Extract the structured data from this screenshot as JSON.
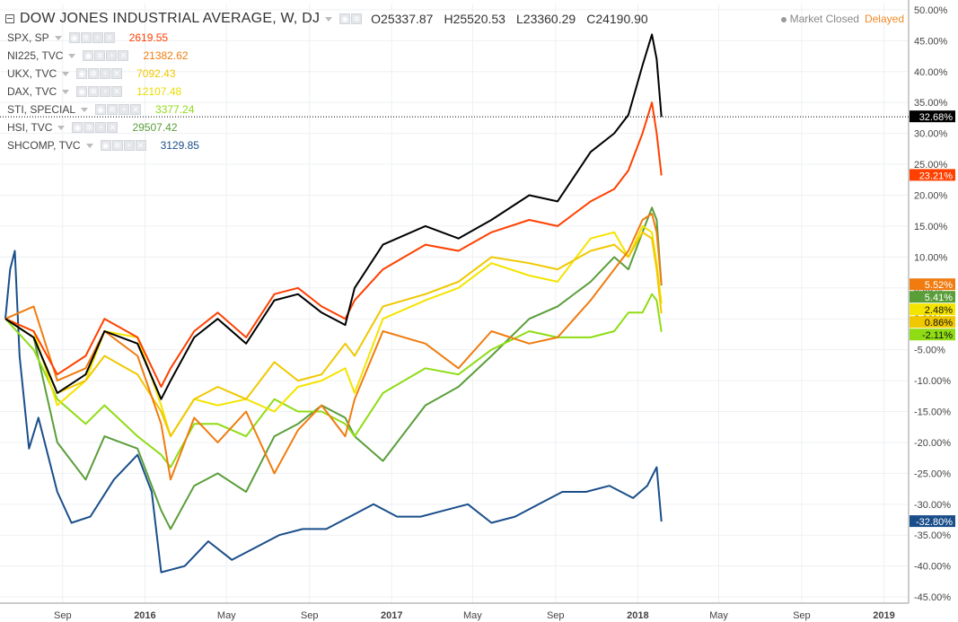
{
  "main": {
    "title": "DOW JONES INDUSTRIAL AVERAGE, W, DJ",
    "ohlc": {
      "o_label": "O",
      "o": "25337.87",
      "h_label": "H",
      "h": "25520.53",
      "l_label": "L",
      "l": "23360.29",
      "c_label": "C",
      "c": "24190.90"
    },
    "status": "Market Closed",
    "delayed": "Delayed"
  },
  "colors": {
    "DJI": "#000000",
    "SPX": "#ff4000",
    "NI225": "#f07c10",
    "UKX": "#f0c800",
    "DAX": "#f4e400",
    "STI": "#8fdc14",
    "HSI": "#5a9e3a",
    "SHCOMP": "#1a4e8a"
  },
  "legend": [
    {
      "name": "SPX, SP",
      "value": "2619.55",
      "color": "#ff4000"
    },
    {
      "name": "NI225, TVC",
      "value": "21382.62",
      "color": "#f07c10"
    },
    {
      "name": "UKX, TVC",
      "value": "7092.43",
      "color": "#f0c800"
    },
    {
      "name": "DAX, TVC",
      "value": "12107.48",
      "color": "#e8dc00"
    },
    {
      "name": "STI, SPECIAL",
      "value": "3377.24",
      "color": "#8fdc14"
    },
    {
      "name": "HSI, TVC",
      "value": "29507.42",
      "color": "#5a9e3a"
    },
    {
      "name": "SHCOMP, TVC",
      "value": "3129.85",
      "color": "#1a4e8a"
    }
  ],
  "chart_data": {
    "type": "line",
    "ylim": [
      -46,
      51
    ],
    "ylabel": "",
    "xlabel": "",
    "y_ticks": [
      "50.00%",
      "45.00%",
      "40.00%",
      "35.00%",
      "30.00%",
      "25.00%",
      "20.00%",
      "15.00%",
      "10.00%",
      "5.00%",
      "0.00%",
      "-5.00%",
      "-10.00%",
      "-15.00%",
      "-20.00%",
      "-25.00%",
      "-30.00%",
      "-35.00%",
      "-40.00%",
      "-45.00%"
    ],
    "y_tick_values": [
      50,
      45,
      40,
      35,
      30,
      25,
      20,
      15,
      10,
      5,
      0,
      -5,
      -10,
      -15,
      -20,
      -25,
      -30,
      -35,
      -40,
      -45
    ],
    "x_ticks": [
      "Sep",
      "2016",
      "May",
      "Sep",
      "2017",
      "May",
      "Sep",
      "2018",
      "May",
      "Sep",
      "2019"
    ],
    "x_tick_dates": [
      "2015-09-01",
      "2016-01-01",
      "2016-05-01",
      "2016-09-01",
      "2017-01-01",
      "2017-05-01",
      "2017-09-01",
      "2018-01-01",
      "2018-05-01",
      "2018-09-01",
      "2019-01-01"
    ],
    "x_range": [
      "2015-06-08",
      "2019-02-04"
    ],
    "grid": true,
    "series": [
      {
        "name": "DOW JONES INDUSTRIAL AVERAGE",
        "key": "DJI",
        "last_label": "32.68%",
        "show_last": true,
        "crosshair": true,
        "x": [
          "2015-06-08",
          "2015-07-20",
          "2015-08-24",
          "2015-10-05",
          "2015-11-02",
          "2015-12-21",
          "2016-01-25",
          "2016-02-08",
          "2016-03-14",
          "2016-04-18",
          "2016-05-30",
          "2016-07-11",
          "2016-08-15",
          "2016-09-19",
          "2016-10-24",
          "2016-11-07",
          "2016-12-19",
          "2017-02-20",
          "2017-04-10",
          "2017-05-29",
          "2017-07-24",
          "2017-09-04",
          "2017-10-23",
          "2017-11-27",
          "2017-12-18",
          "2018-01-08",
          "2018-01-22",
          "2018-01-29",
          "2018-02-05"
        ],
        "values": [
          0,
          -3,
          -12,
          -9,
          -2,
          -4,
          -13,
          -10,
          -3,
          0,
          -4,
          3,
          4,
          1,
          -1,
          5,
          12,
          15,
          13,
          16,
          20,
          19,
          27,
          30,
          33,
          41,
          46,
          42,
          32.68
        ]
      },
      {
        "name": "SPX, SP",
        "key": "SPX",
        "last_label": "23.21%",
        "show_last": true,
        "x": [
          "2015-06-08",
          "2015-07-20",
          "2015-08-24",
          "2015-10-05",
          "2015-11-02",
          "2015-12-21",
          "2016-01-25",
          "2016-02-08",
          "2016-03-14",
          "2016-04-18",
          "2016-05-30",
          "2016-07-11",
          "2016-08-15",
          "2016-09-19",
          "2016-10-24",
          "2016-11-07",
          "2016-12-19",
          "2017-02-20",
          "2017-04-10",
          "2017-05-29",
          "2017-07-24",
          "2017-09-04",
          "2017-10-23",
          "2017-11-27",
          "2017-12-18",
          "2018-01-08",
          "2018-01-22",
          "2018-01-29",
          "2018-02-05"
        ],
        "values": [
          0,
          -2,
          -9,
          -6,
          0,
          -3,
          -11,
          -8,
          -2,
          1,
          -3,
          4,
          5,
          2,
          0,
          3,
          8,
          12,
          11,
          14,
          16,
          15,
          19,
          21,
          24,
          30,
          35,
          30,
          23.21
        ]
      },
      {
        "name": "NI225, TVC",
        "key": "NI225",
        "last_label": "5.52%",
        "show_last": true,
        "x": [
          "2015-06-08",
          "2015-07-20",
          "2015-08-24",
          "2015-10-05",
          "2015-11-02",
          "2015-12-21",
          "2016-01-25",
          "2016-02-08",
          "2016-03-14",
          "2016-04-18",
          "2016-05-30",
          "2016-07-11",
          "2016-08-15",
          "2016-09-19",
          "2016-10-24",
          "2016-11-07",
          "2016-12-19",
          "2017-02-20",
          "2017-04-10",
          "2017-05-29",
          "2017-07-24",
          "2017-09-04",
          "2017-10-23",
          "2017-11-27",
          "2017-12-18",
          "2018-01-08",
          "2018-01-22",
          "2018-01-29",
          "2018-02-05"
        ],
        "values": [
          0,
          2,
          -10,
          -8,
          -2,
          -6,
          -17,
          -26,
          -16,
          -20,
          -15,
          -25,
          -18,
          -14,
          -19,
          -13,
          -2,
          -4,
          -8,
          -2,
          -4,
          -3,
          3,
          8,
          11,
          16,
          17,
          14,
          5.52
        ]
      },
      {
        "name": "UKX, TVC",
        "key": "UKX",
        "last_label": "0.86%",
        "show_last": true,
        "x": [
          "2015-06-08",
          "2015-07-20",
          "2015-08-24",
          "2015-10-05",
          "2015-11-02",
          "2015-12-21",
          "2016-01-25",
          "2016-02-08",
          "2016-03-14",
          "2016-04-18",
          "2016-05-30",
          "2016-07-11",
          "2016-08-15",
          "2016-09-19",
          "2016-10-24",
          "2016-11-07",
          "2016-12-19",
          "2017-02-20",
          "2017-04-10",
          "2017-05-29",
          "2017-07-24",
          "2017-09-04",
          "2017-10-23",
          "2017-11-27",
          "2017-12-18",
          "2018-01-08",
          "2018-01-22",
          "2018-01-29",
          "2018-02-05"
        ],
        "values": [
          0,
          -3,
          -12,
          -10,
          -6,
          -9,
          -15,
          -19,
          -13,
          -11,
          -13,
          -7,
          -10,
          -9,
          -4,
          -6,
          2,
          4,
          6,
          10,
          9,
          8,
          11,
          12,
          10,
          14,
          13,
          8,
          0.86
        ]
      },
      {
        "name": "DAX, TVC",
        "key": "DAX",
        "last_label": "2.48%",
        "show_last": true,
        "x": [
          "2015-06-08",
          "2015-07-20",
          "2015-08-24",
          "2015-10-05",
          "2015-11-02",
          "2015-12-21",
          "2016-01-25",
          "2016-02-08",
          "2016-03-14",
          "2016-04-18",
          "2016-05-30",
          "2016-07-11",
          "2016-08-15",
          "2016-09-19",
          "2016-10-24",
          "2016-11-07",
          "2016-12-19",
          "2017-02-20",
          "2017-04-10",
          "2017-05-29",
          "2017-07-24",
          "2017-09-04",
          "2017-10-23",
          "2017-11-27",
          "2017-12-18",
          "2018-01-08",
          "2018-01-22",
          "2018-01-29",
          "2018-02-05"
        ],
        "values": [
          0,
          -2,
          -14,
          -10,
          -2,
          -3,
          -14,
          -19,
          -13,
          -14,
          -13,
          -15,
          -11,
          -10,
          -8,
          -12,
          0,
          3,
          5,
          9,
          7,
          6,
          13,
          14,
          10,
          15,
          14,
          9,
          2.48
        ]
      },
      {
        "name": "STI, SPECIAL",
        "key": "STI",
        "last_label": "-2.11%",
        "show_last": true,
        "x": [
          "2015-06-08",
          "2015-07-20",
          "2015-08-24",
          "2015-10-05",
          "2015-11-02",
          "2015-12-21",
          "2016-01-25",
          "2016-02-08",
          "2016-03-14",
          "2016-04-18",
          "2016-05-30",
          "2016-07-11",
          "2016-08-15",
          "2016-09-19",
          "2016-10-24",
          "2016-11-07",
          "2016-12-19",
          "2017-02-20",
          "2017-04-10",
          "2017-05-29",
          "2017-07-24",
          "2017-09-04",
          "2017-10-23",
          "2017-11-27",
          "2017-12-18",
          "2018-01-08",
          "2018-01-22",
          "2018-01-29",
          "2018-02-05"
        ],
        "values": [
          0,
          -5,
          -13,
          -17,
          -14,
          -19,
          -22,
          -24,
          -17,
          -17,
          -19,
          -13,
          -15,
          -15,
          -17,
          -19,
          -12,
          -8,
          -9,
          -5,
          -2,
          -3,
          -3,
          -2,
          1,
          1,
          4,
          3,
          -2.11
        ]
      },
      {
        "name": "HSI, TVC",
        "key": "HSI",
        "last_label": "5.41%",
        "show_last": true,
        "x": [
          "2015-06-08",
          "2015-07-20",
          "2015-08-24",
          "2015-10-05",
          "2015-11-02",
          "2015-12-21",
          "2016-01-25",
          "2016-02-08",
          "2016-03-14",
          "2016-04-18",
          "2016-05-30",
          "2016-07-11",
          "2016-08-15",
          "2016-09-19",
          "2016-10-24",
          "2016-11-07",
          "2016-12-19",
          "2017-02-20",
          "2017-04-10",
          "2017-05-29",
          "2017-07-24",
          "2017-09-04",
          "2017-10-23",
          "2017-11-27",
          "2017-12-18",
          "2018-01-08",
          "2018-01-22",
          "2018-01-29",
          "2018-02-05"
        ],
        "values": [
          0,
          -3,
          -20,
          -26,
          -19,
          -21,
          -31,
          -34,
          -27,
          -25,
          -28,
          -19,
          -17,
          -14,
          -16,
          -19,
          -23,
          -14,
          -11,
          -6,
          0,
          2,
          6,
          10,
          8,
          14,
          18,
          16,
          5.41
        ]
      },
      {
        "name": "SHCOMP, TVC",
        "key": "SHCOMP",
        "last_label": "-32.80%",
        "show_last": true,
        "x": [
          "2015-06-08",
          "2015-06-15",
          "2015-06-22",
          "2015-06-29",
          "2015-07-13",
          "2015-07-27",
          "2015-08-24",
          "2015-09-14",
          "2015-10-12",
          "2015-11-16",
          "2015-12-21",
          "2016-01-11",
          "2016-01-25",
          "2016-02-29",
          "2016-04-04",
          "2016-05-09",
          "2016-06-13",
          "2016-07-18",
          "2016-08-22",
          "2016-09-26",
          "2016-10-31",
          "2016-12-05",
          "2017-01-09",
          "2017-02-13",
          "2017-03-20",
          "2017-04-24",
          "2017-05-29",
          "2017-07-03",
          "2017-08-07",
          "2017-09-11",
          "2017-10-16",
          "2017-11-20",
          "2017-12-25",
          "2018-01-15",
          "2018-01-29",
          "2018-02-05"
        ],
        "values": [
          0,
          8,
          11,
          -6,
          -21,
          -16,
          -28,
          -33,
          -32,
          -26,
          -22,
          -28,
          -41,
          -40,
          -36,
          -39,
          -37,
          -35,
          -34,
          -34,
          -32,
          -30,
          -32,
          -32,
          -31,
          -30,
          -33,
          -32,
          -30,
          -28,
          -28,
          -27,
          -29,
          -27,
          -24,
          -32.8
        ]
      }
    ]
  }
}
